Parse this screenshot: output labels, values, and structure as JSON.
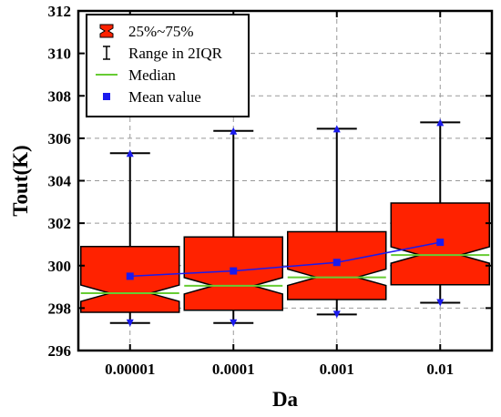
{
  "chart_data": {
    "type": "box",
    "xlabel": "Da",
    "ylabel": "Tout(K)",
    "categories": [
      "0.00001",
      "0.0001",
      "0.001",
      "0.01"
    ],
    "ylim": [
      296,
      312
    ],
    "yticks": [
      296,
      298,
      300,
      302,
      304,
      306,
      308,
      310,
      312
    ],
    "grid": true,
    "legend_position": "top-left",
    "legend": [
      {
        "key": "box",
        "label": "25%~75%"
      },
      {
        "key": "range",
        "label": "Range in 2IQR"
      },
      {
        "key": "median",
        "label": "Median"
      },
      {
        "key": "mean",
        "label": "Mean value"
      }
    ],
    "boxes": [
      {
        "category": "0.00001",
        "min": 297.3,
        "q1": 297.8,
        "median": 298.7,
        "q3": 300.9,
        "max": 305.3,
        "mean": 299.5
      },
      {
        "category": "0.0001",
        "min": 297.3,
        "q1": 297.9,
        "median": 299.05,
        "q3": 301.35,
        "max": 306.35,
        "mean": 299.75
      },
      {
        "category": "0.001",
        "min": 297.7,
        "q1": 298.4,
        "median": 299.45,
        "q3": 301.6,
        "max": 306.45,
        "mean": 300.15
      },
      {
        "category": "0.01",
        "min": 298.25,
        "q1": 299.1,
        "median": 300.5,
        "q3": 302.95,
        "max": 306.75,
        "mean": 301.1
      }
    ],
    "colors": {
      "box_fill": "#ff2200",
      "median": "#66cc33",
      "mean": "#1a1aee",
      "whisker": "#000000",
      "grid": "#999999"
    }
  }
}
